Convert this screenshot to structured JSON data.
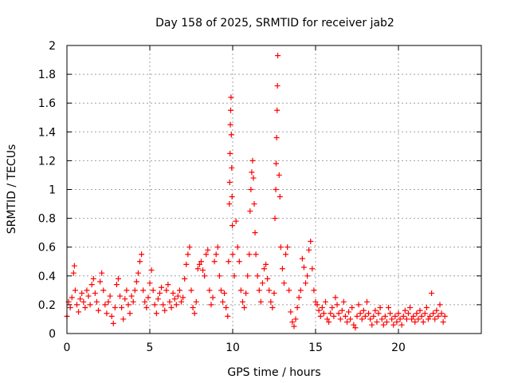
{
  "chart_data": {
    "type": "scatter",
    "title": "Day 158 of 2025, SRMTID for receiver jab2",
    "xlabel": "GPS time / hours",
    "ylabel": "SRMTID / TECUs",
    "xlim": [
      0,
      25
    ],
    "ylim": [
      0,
      2
    ],
    "xticks": [
      0,
      5,
      10,
      15,
      20
    ],
    "yticks": [
      0,
      0.2,
      0.4,
      0.6,
      0.8,
      1,
      1.2,
      1.4,
      1.6,
      1.8,
      2
    ],
    "grid": true,
    "marker": "+",
    "color": "#ff0000",
    "series": [
      {
        "name": "SRMTID",
        "points": [
          [
            0.0,
            0.12
          ],
          [
            0.1,
            0.22
          ],
          [
            0.2,
            0.18
          ],
          [
            0.3,
            0.25
          ],
          [
            0.4,
            0.42
          ],
          [
            0.45,
            0.47
          ],
          [
            0.5,
            0.3
          ],
          [
            0.6,
            0.2
          ],
          [
            0.7,
            0.15
          ],
          [
            0.8,
            0.24
          ],
          [
            0.9,
            0.28
          ],
          [
            1.0,
            0.22
          ],
          [
            1.1,
            0.18
          ],
          [
            1.2,
            0.3
          ],
          [
            1.3,
            0.26
          ],
          [
            1.4,
            0.2
          ],
          [
            1.5,
            0.34
          ],
          [
            1.6,
            0.38
          ],
          [
            1.7,
            0.28
          ],
          [
            1.8,
            0.22
          ],
          [
            1.9,
            0.16
          ],
          [
            2.0,
            0.36
          ],
          [
            2.1,
            0.42
          ],
          [
            2.2,
            0.3
          ],
          [
            2.3,
            0.2
          ],
          [
            2.4,
            0.14
          ],
          [
            2.5,
            0.22
          ],
          [
            2.6,
            0.26
          ],
          [
            2.7,
            0.12
          ],
          [
            2.8,
            0.07
          ],
          [
            2.9,
            0.18
          ],
          [
            3.0,
            0.34
          ],
          [
            3.1,
            0.38
          ],
          [
            3.2,
            0.26
          ],
          [
            3.3,
            0.18
          ],
          [
            3.4,
            0.1
          ],
          [
            3.5,
            0.24
          ],
          [
            3.6,
            0.3
          ],
          [
            3.7,
            0.2
          ],
          [
            3.8,
            0.14
          ],
          [
            3.9,
            0.26
          ],
          [
            4.0,
            0.22
          ],
          [
            4.1,
            0.3
          ],
          [
            4.2,
            0.36
          ],
          [
            4.3,
            0.42
          ],
          [
            4.4,
            0.5
          ],
          [
            4.5,
            0.55
          ],
          [
            4.6,
            0.3
          ],
          [
            4.7,
            0.22
          ],
          [
            4.8,
            0.18
          ],
          [
            4.9,
            0.25
          ],
          [
            5.0,
            0.35
          ],
          [
            5.1,
            0.44
          ],
          [
            5.2,
            0.3
          ],
          [
            5.3,
            0.2
          ],
          [
            5.4,
            0.14
          ],
          [
            5.5,
            0.24
          ],
          [
            5.6,
            0.28
          ],
          [
            5.7,
            0.32
          ],
          [
            5.8,
            0.2
          ],
          [
            5.9,
            0.16
          ],
          [
            6.0,
            0.3
          ],
          [
            6.1,
            0.34
          ],
          [
            6.2,
            0.22
          ],
          [
            6.3,
            0.18
          ],
          [
            6.4,
            0.28
          ],
          [
            6.5,
            0.24
          ],
          [
            6.6,
            0.2
          ],
          [
            6.7,
            0.26
          ],
          [
            6.8,
            0.3
          ],
          [
            6.9,
            0.22
          ],
          [
            7.0,
            0.25
          ],
          [
            7.1,
            0.38
          ],
          [
            7.2,
            0.48
          ],
          [
            7.3,
            0.55
          ],
          [
            7.4,
            0.6
          ],
          [
            7.5,
            0.3
          ],
          [
            7.6,
            0.18
          ],
          [
            7.7,
            0.14
          ],
          [
            7.8,
            0.22
          ],
          [
            7.9,
            0.45
          ],
          [
            8.0,
            0.48
          ],
          [
            8.1,
            0.5
          ],
          [
            8.2,
            0.44
          ],
          [
            8.3,
            0.4
          ],
          [
            8.4,
            0.55
          ],
          [
            8.5,
            0.58
          ],
          [
            8.6,
            0.3
          ],
          [
            8.7,
            0.2
          ],
          [
            8.8,
            0.25
          ],
          [
            8.9,
            0.5
          ],
          [
            9.0,
            0.55
          ],
          [
            9.1,
            0.6
          ],
          [
            9.2,
            0.4
          ],
          [
            9.3,
            0.3
          ],
          [
            9.4,
            0.22
          ],
          [
            9.5,
            0.28
          ],
          [
            9.6,
            0.18
          ],
          [
            9.7,
            0.12
          ],
          [
            9.75,
            0.5
          ],
          [
            9.8,
            0.9
          ],
          [
            9.82,
            1.05
          ],
          [
            9.84,
            1.25
          ],
          [
            9.86,
            1.45
          ],
          [
            9.88,
            1.55
          ],
          [
            9.9,
            1.64
          ],
          [
            9.92,
            1.38
          ],
          [
            9.94,
            1.15
          ],
          [
            9.96,
            0.95
          ],
          [
            9.98,
            0.75
          ],
          [
            10.0,
            0.55
          ],
          [
            10.1,
            0.4
          ],
          [
            10.2,
            0.78
          ],
          [
            10.3,
            0.6
          ],
          [
            10.4,
            0.5
          ],
          [
            10.5,
            0.3
          ],
          [
            10.6,
            0.22
          ],
          [
            10.7,
            0.18
          ],
          [
            10.8,
            0.28
          ],
          [
            10.9,
            0.4
          ],
          [
            11.0,
            0.55
          ],
          [
            11.05,
            0.85
          ],
          [
            11.1,
            1.0
          ],
          [
            11.15,
            1.12
          ],
          [
            11.2,
            1.2
          ],
          [
            11.25,
            1.08
          ],
          [
            11.3,
            0.9
          ],
          [
            11.35,
            0.7
          ],
          [
            11.4,
            0.55
          ],
          [
            11.5,
            0.4
          ],
          [
            11.6,
            0.3
          ],
          [
            11.7,
            0.22
          ],
          [
            11.8,
            0.35
          ],
          [
            11.9,
            0.45
          ],
          [
            12.0,
            0.48
          ],
          [
            12.1,
            0.38
          ],
          [
            12.2,
            0.3
          ],
          [
            12.3,
            0.22
          ],
          [
            12.4,
            0.18
          ],
          [
            12.5,
            0.28
          ],
          [
            12.55,
            0.8
          ],
          [
            12.6,
            1.0
          ],
          [
            12.62,
            1.18
          ],
          [
            12.65,
            1.36
          ],
          [
            12.68,
            1.55
          ],
          [
            12.7,
            1.72
          ],
          [
            12.72,
            1.93
          ],
          [
            12.8,
            1.1
          ],
          [
            12.85,
            0.95
          ],
          [
            12.9,
            0.6
          ],
          [
            13.0,
            0.45
          ],
          [
            13.1,
            0.35
          ],
          [
            13.2,
            0.55
          ],
          [
            13.3,
            0.6
          ],
          [
            13.4,
            0.3
          ],
          [
            13.5,
            0.15
          ],
          [
            13.6,
            0.08
          ],
          [
            13.7,
            0.05
          ],
          [
            13.8,
            0.1
          ],
          [
            13.9,
            0.18
          ],
          [
            14.0,
            0.25
          ],
          [
            14.1,
            0.3
          ],
          [
            14.2,
            0.52
          ],
          [
            14.3,
            0.46
          ],
          [
            14.4,
            0.35
          ],
          [
            14.5,
            0.4
          ],
          [
            14.6,
            0.58
          ],
          [
            14.7,
            0.64
          ],
          [
            14.8,
            0.45
          ],
          [
            14.9,
            0.3
          ],
          [
            15.0,
            0.22
          ],
          [
            15.1,
            0.2
          ],
          [
            15.2,
            0.16
          ],
          [
            15.3,
            0.12
          ],
          [
            15.4,
            0.18
          ],
          [
            15.5,
            0.14
          ],
          [
            15.6,
            0.22
          ],
          [
            15.7,
            0.1
          ],
          [
            15.8,
            0.08
          ],
          [
            15.9,
            0.14
          ],
          [
            16.0,
            0.18
          ],
          [
            16.1,
            0.12
          ],
          [
            16.2,
            0.25
          ],
          [
            16.3,
            0.2
          ],
          [
            16.4,
            0.14
          ],
          [
            16.5,
            0.1
          ],
          [
            16.6,
            0.16
          ],
          [
            16.7,
            0.22
          ],
          [
            16.8,
            0.12
          ],
          [
            16.9,
            0.08
          ],
          [
            17.0,
            0.15
          ],
          [
            17.1,
            0.1
          ],
          [
            17.2,
            0.18
          ],
          [
            17.3,
            0.06
          ],
          [
            17.4,
            0.04
          ],
          [
            17.5,
            0.12
          ],
          [
            17.6,
            0.2
          ],
          [
            17.7,
            0.14
          ],
          [
            17.8,
            0.1
          ],
          [
            17.9,
            0.16
          ],
          [
            18.0,
            0.12
          ],
          [
            18.1,
            0.22
          ],
          [
            18.2,
            0.14
          ],
          [
            18.3,
            0.1
          ],
          [
            18.4,
            0.06
          ],
          [
            18.5,
            0.12
          ],
          [
            18.6,
            0.16
          ],
          [
            18.7,
            0.08
          ],
          [
            18.8,
            0.14
          ],
          [
            18.9,
            0.18
          ],
          [
            19.0,
            0.1
          ],
          [
            19.1,
            0.06
          ],
          [
            19.2,
            0.12
          ],
          [
            19.3,
            0.08
          ],
          [
            19.4,
            0.18
          ],
          [
            19.5,
            0.14
          ],
          [
            19.6,
            0.1
          ],
          [
            19.7,
            0.06
          ],
          [
            19.8,
            0.12
          ],
          [
            19.9,
            0.08
          ],
          [
            20.0,
            0.14
          ],
          [
            20.1,
            0.1
          ],
          [
            20.2,
            0.06
          ],
          [
            20.3,
            0.12
          ],
          [
            20.4,
            0.16
          ],
          [
            20.5,
            0.1
          ],
          [
            20.6,
            0.14
          ],
          [
            20.7,
            0.18
          ],
          [
            20.8,
            0.1
          ],
          [
            20.9,
            0.12
          ],
          [
            21.0,
            0.08
          ],
          [
            21.1,
            0.14
          ],
          [
            21.2,
            0.1
          ],
          [
            21.3,
            0.16
          ],
          [
            21.4,
            0.12
          ],
          [
            21.5,
            0.08
          ],
          [
            21.6,
            0.14
          ],
          [
            21.7,
            0.18
          ],
          [
            21.8,
            0.1
          ],
          [
            21.9,
            0.12
          ],
          [
            22.0,
            0.28
          ],
          [
            22.1,
            0.14
          ],
          [
            22.2,
            0.1
          ],
          [
            22.3,
            0.16
          ],
          [
            22.4,
            0.12
          ],
          [
            22.5,
            0.2
          ],
          [
            22.6,
            0.14
          ],
          [
            22.7,
            0.08
          ],
          [
            22.8,
            0.12
          ]
        ]
      }
    ]
  }
}
